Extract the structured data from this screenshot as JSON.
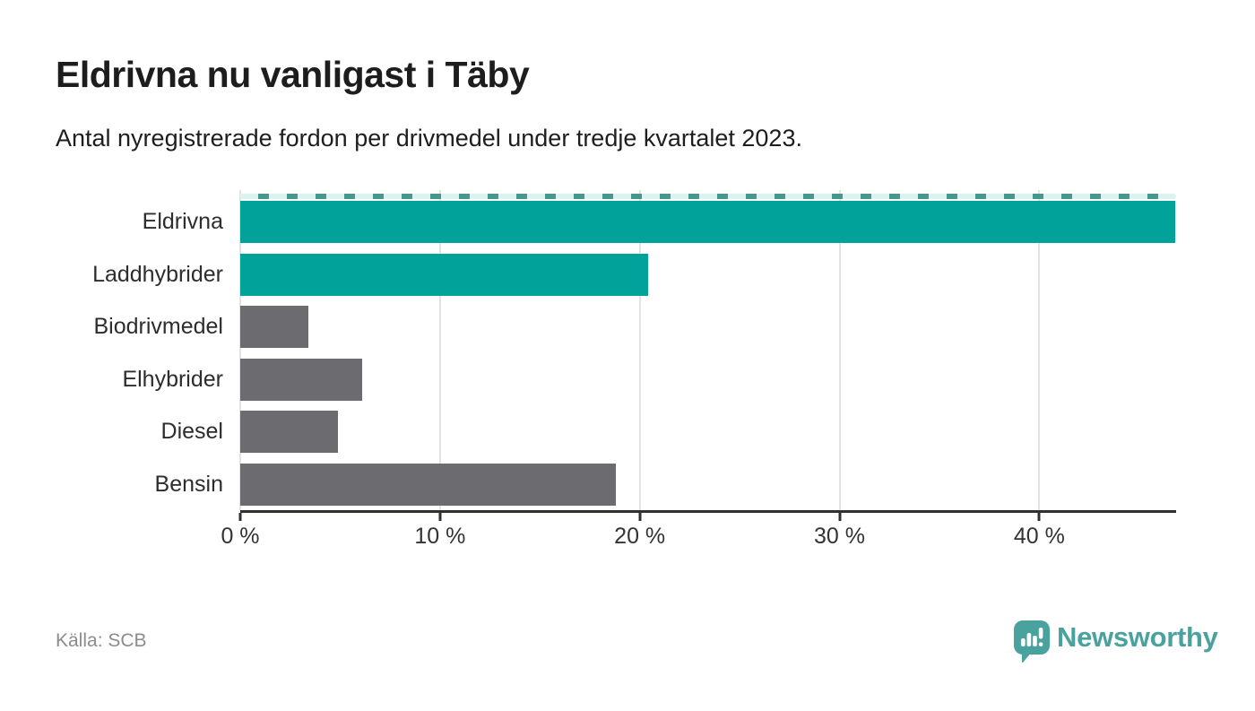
{
  "header": {
    "title": "Eldrivna nu vanligast i Täby",
    "subtitle": "Antal nyregistrerade fordon per drivmedel under tredje kvartalet 2023."
  },
  "chart_data": {
    "type": "bar",
    "orientation": "horizontal",
    "title": "Eldrivna nu vanligast i Täby",
    "subtitle": "Antal nyregistrerade fordon per drivmedel under tredje kvartalet 2023.",
    "categories": [
      "Eldrivna",
      "Laddhybrider",
      "Biodrivmedel",
      "Elhybrider",
      "Diesel",
      "Bensin"
    ],
    "values": [
      46.8,
      20.4,
      3.4,
      6.1,
      4.9,
      18.8
    ],
    "unit": "%",
    "xlim": [
      0,
      46.85
    ],
    "xticks": [
      0,
      10,
      20,
      30,
      40
    ],
    "xtick_labels": [
      "0 %",
      "10 %",
      "20 %",
      "30 %",
      "40 %"
    ],
    "bar_colors": [
      "#00a299",
      "#00a299",
      "#6c6b6f",
      "#6c6b6f",
      "#6c6b6f",
      "#6c6b6f"
    ],
    "grid": "vertical-light",
    "top_edge": "dashed-teal",
    "legend": "none"
  },
  "footer": {
    "source": "Källa: SCB",
    "brand": "Newsworthy",
    "logo_icon": "newsworthy-speech-bubble-chart-icon"
  },
  "colors": {
    "accent_teal": "#00a299",
    "neutral_gray": "#6c6b6f",
    "logo_teal": "#4aa29f",
    "axis": "#303030",
    "gridline": "#e3e3e3"
  }
}
